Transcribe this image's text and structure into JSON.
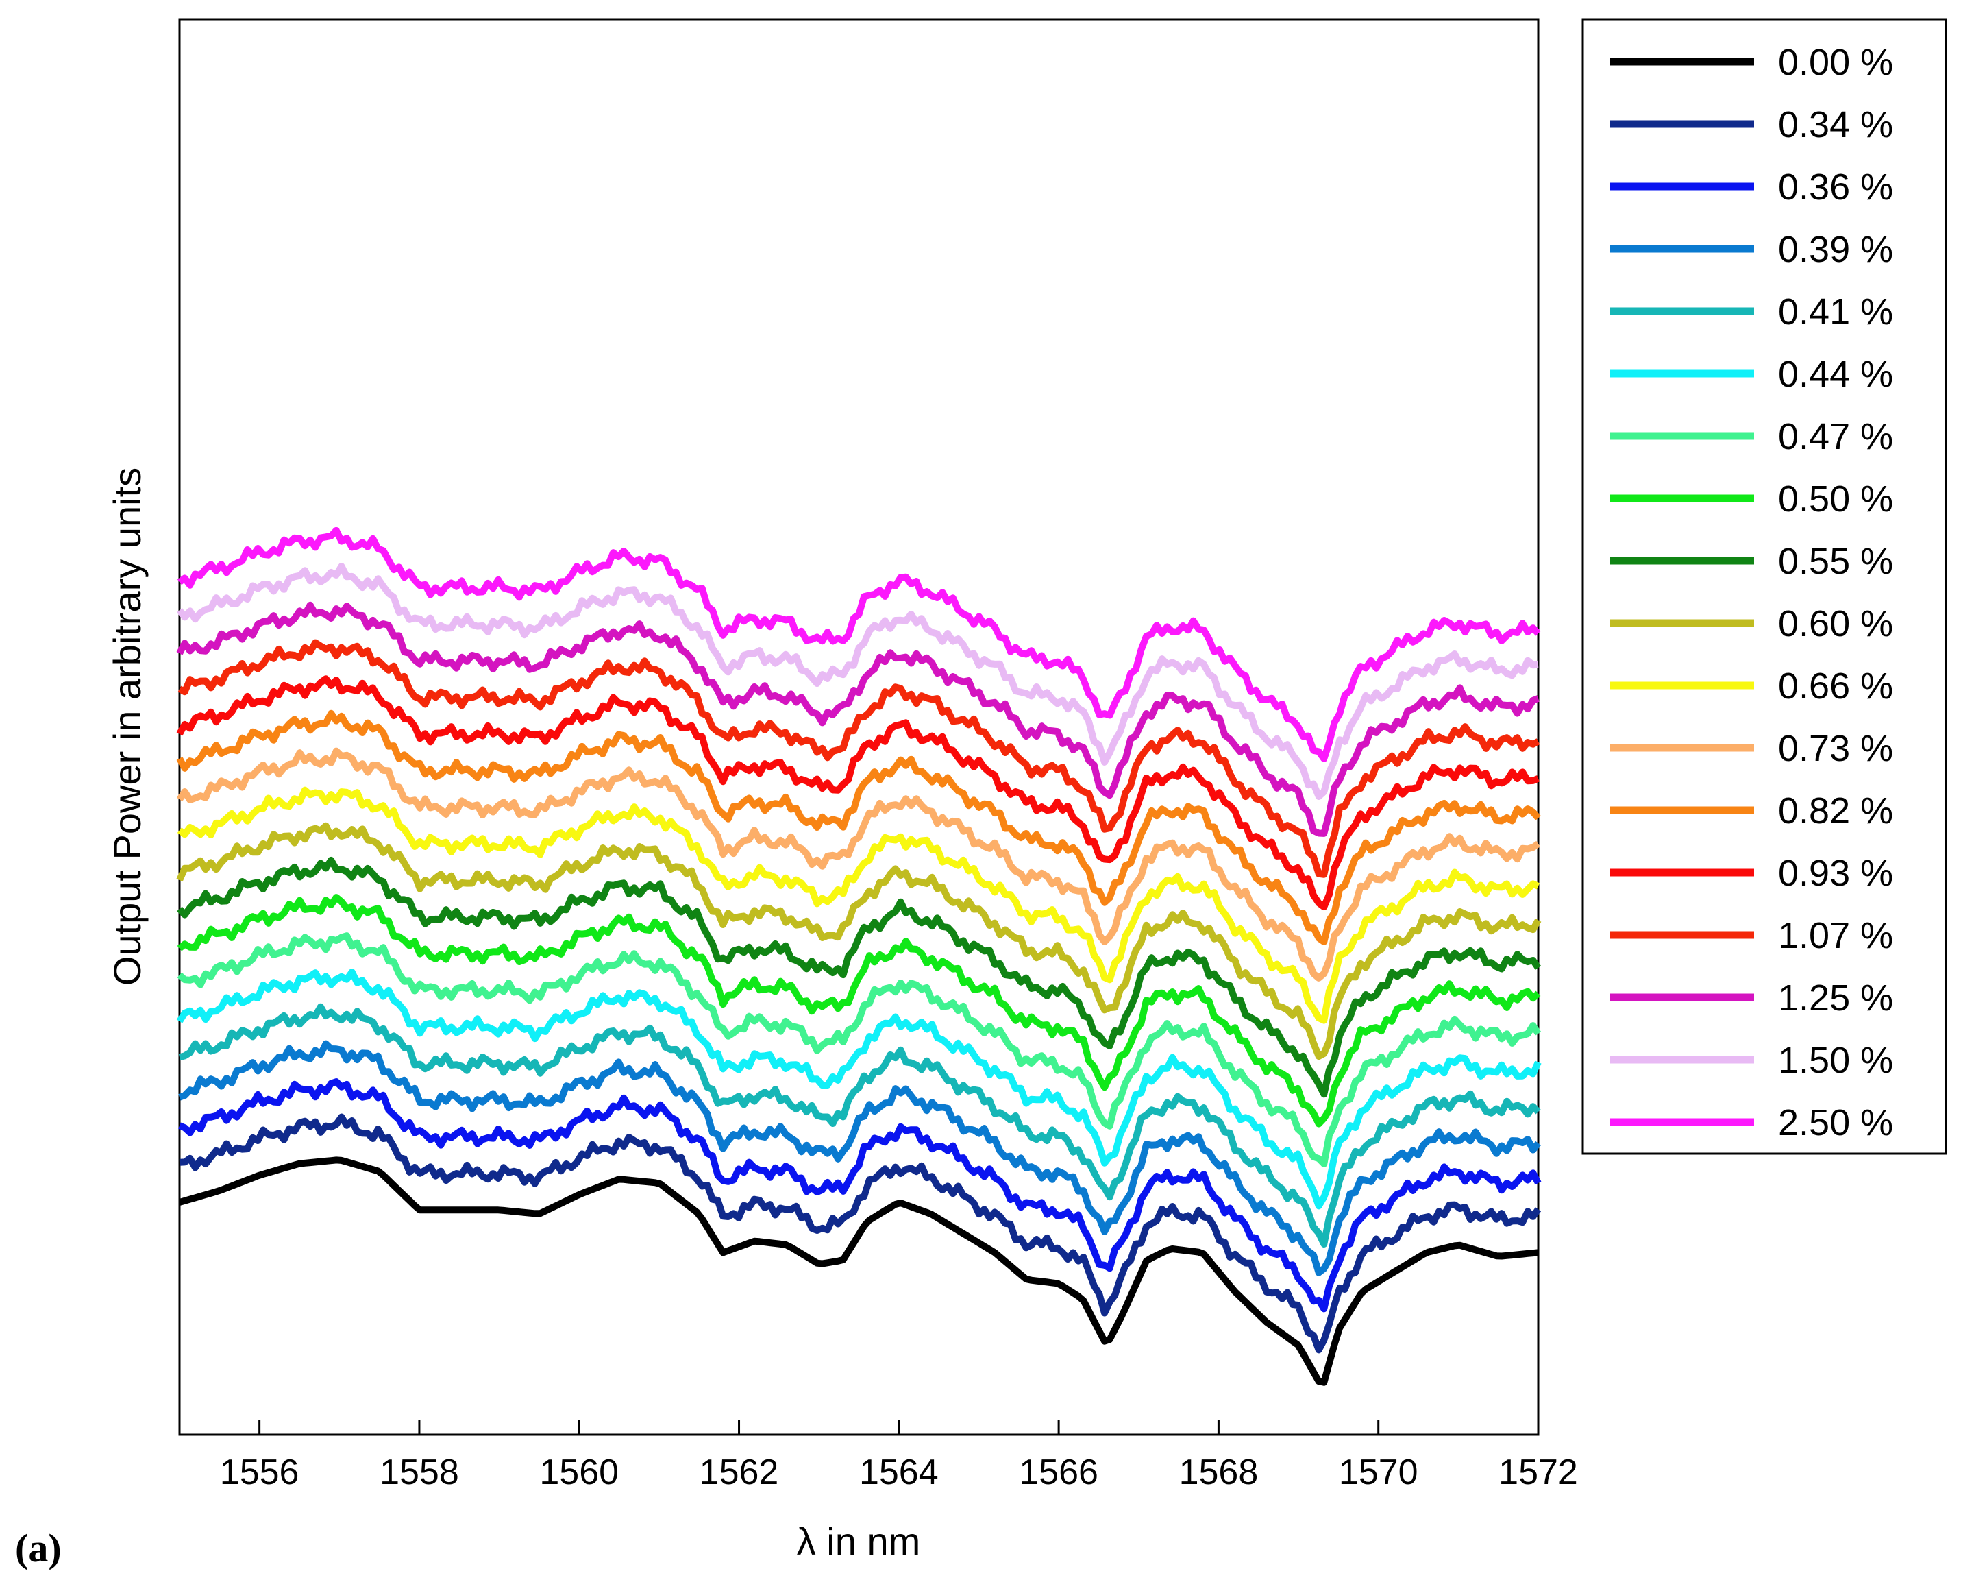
{
  "panel_label": "(a)",
  "chart_data": {
    "type": "line",
    "title": "",
    "xlabel": "λ in nm",
    "ylabel": "Output Power in arbitrary units",
    "xlim": [
      1555,
      1572
    ],
    "xticks": [
      1556,
      1558,
      1560,
      1562,
      1564,
      1566,
      1568,
      1570,
      1572
    ],
    "y_ticks_shown": false,
    "grid": false,
    "legend_position": "outside-right",
    "base_profile": {
      "x": [
        1555,
        1555.5,
        1556,
        1556.5,
        1557,
        1557.5,
        1558,
        1558.5,
        1559,
        1559.5,
        1560,
        1560.5,
        1561,
        1561.5,
        1561.8,
        1562.2,
        1562.6,
        1563,
        1563.3,
        1563.6,
        1564,
        1564.4,
        1564.8,
        1565.2,
        1565.6,
        1566,
        1566.3,
        1566.6,
        1566.8,
        1567.1,
        1567.4,
        1567.8,
        1568.2,
        1568.6,
        1569,
        1569.3,
        1569.5,
        1569.8,
        1570.2,
        1570.6,
        1571,
        1571.5,
        1572
      ],
      "y": [
        0.53,
        0.56,
        0.6,
        0.63,
        0.64,
        0.61,
        0.51,
        0.51,
        0.51,
        0.5,
        0.55,
        0.59,
        0.58,
        0.5,
        0.4,
        0.43,
        0.42,
        0.37,
        0.38,
        0.48,
        0.53,
        0.5,
        0.45,
        0.4,
        0.33,
        0.32,
        0.28,
        0.16,
        0.24,
        0.38,
        0.41,
        0.4,
        0.3,
        0.22,
        0.16,
        0.05,
        0.2,
        0.3,
        0.35,
        0.4,
        0.42,
        0.39,
        0.4
      ]
    },
    "series": [
      {
        "name": "0.00 %",
        "color": "#000000",
        "offset": 0
      },
      {
        "name": "0.34 %",
        "color": "#102a8c",
        "offset": 1
      },
      {
        "name": "0.36 %",
        "color": "#0a14f0",
        "offset": 2
      },
      {
        "name": "0.39 %",
        "color": "#0a7ad0",
        "offset": 3
      },
      {
        "name": "0.41 %",
        "color": "#16b6b6",
        "offset": 4
      },
      {
        "name": "0.44 %",
        "color": "#10f0f8",
        "offset": 5
      },
      {
        "name": "0.47 %",
        "color": "#40f290",
        "offset": 6
      },
      {
        "name": "0.50 %",
        "color": "#10e818",
        "offset": 7
      },
      {
        "name": "0.55 %",
        "color": "#108414",
        "offset": 8
      },
      {
        "name": "0.60 %",
        "color": "#c0bc20",
        "offset": 9
      },
      {
        "name": "0.66 %",
        "color": "#f8f810",
        "offset": 10
      },
      {
        "name": "0.73 %",
        "color": "#fcae68",
        "offset": 11
      },
      {
        "name": "0.82 %",
        "color": "#f88414",
        "offset": 12
      },
      {
        "name": "0.93 %",
        "color": "#fa0a0a",
        "offset": 13
      },
      {
        "name": "1.07 %",
        "color": "#f4280a",
        "offset": 14
      },
      {
        "name": "1.25 %",
        "color": "#d414c0",
        "offset": 15
      },
      {
        "name": "1.50 %",
        "color": "#e8baf4",
        "offset": 16
      },
      {
        "name": "2.50 %",
        "color": "#fc18fc",
        "offset": 17
      }
    ]
  }
}
